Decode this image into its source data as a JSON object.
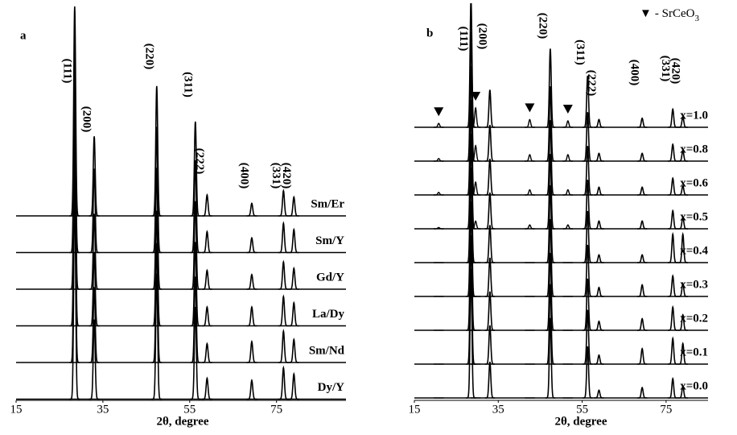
{
  "chart_data": [
    {
      "type": "line",
      "panel_label": "a",
      "xlabel": "2θ, degree",
      "xlim": [
        15,
        91
      ],
      "xticks": [
        15,
        35,
        55,
        75
      ],
      "color": "#000000",
      "peaks": {
        "labels": [
          "(111)",
          "(200)",
          "(220)",
          "(311)",
          "(222)",
          "(400)",
          "(331)",
          "(420)"
        ],
        "x": [
          28.5,
          33.0,
          47.4,
          56.3,
          59.0,
          69.3,
          76.6,
          79.0
        ]
      },
      "series": [
        {
          "name": "Sm/Er",
          "values": [
            100,
            38,
            62,
            45,
            10,
            6,
            12,
            9
          ]
        },
        {
          "name": "Sm/Y",
          "values": [
            100,
            40,
            60,
            44,
            10,
            7,
            14,
            11
          ]
        },
        {
          "name": "Gd/Y",
          "values": [
            100,
            36,
            58,
            42,
            9,
            7,
            13,
            10
          ]
        },
        {
          "name": "La/Dy",
          "values": [
            100,
            35,
            55,
            40,
            9,
            9,
            14,
            11
          ]
        },
        {
          "name": "Sm/Nd",
          "values": [
            100,
            36,
            57,
            41,
            9,
            10,
            15,
            11
          ]
        },
        {
          "name": "Dy/Y",
          "values": [
            100,
            38,
            60,
            44,
            10,
            9,
            15,
            12
          ]
        }
      ]
    },
    {
      "type": "line",
      "panel_label": "b",
      "xlabel": "2θ, degree",
      "xlim": [
        15,
        85
      ],
      "xticks": [
        15,
        35,
        55,
        75
      ],
      "color": "#000000",
      "legend": {
        "symbol": "▼",
        "label": "- SrCeO",
        "subscript": "3"
      },
      "peaks": {
        "labels": [
          "(111)",
          "(200)",
          "(220)",
          "(311)",
          "(222)",
          "(400)",
          "(331)",
          "(420)"
        ],
        "x": [
          28.5,
          33.0,
          47.4,
          56.3,
          59.0,
          69.3,
          76.6,
          79.0
        ]
      },
      "impurity_peaks": {
        "x": [
          20.8,
          29.6,
          42.5,
          51.6
        ]
      },
      "series": [
        {
          "name": "x=1.0",
          "values": [
            100,
            29,
            61,
            40,
            6,
            7,
            14,
            8
          ],
          "impurity_values": [
            3,
            15,
            6,
            5
          ]
        },
        {
          "name": "x=0.8",
          "values": [
            100,
            28,
            58,
            38,
            6,
            6,
            13,
            8
          ],
          "impurity_values": [
            2,
            12,
            5,
            5
          ]
        },
        {
          "name": "x=0.6",
          "values": [
            100,
            28,
            58,
            38,
            6,
            6,
            13,
            7
          ],
          "impurity_values": [
            2,
            10,
            4,
            4
          ]
        },
        {
          "name": "x=0.5",
          "values": [
            100,
            28,
            58,
            38,
            6,
            6,
            14,
            9
          ],
          "impurity_values": [
            1,
            6,
            3,
            3
          ]
        },
        {
          "name": "x=0.4",
          "values": [
            100,
            29,
            60,
            40,
            6,
            6,
            22,
            22
          ],
          "impurity_values": [
            0,
            0,
            0,
            0
          ]
        },
        {
          "name": "x=0.3",
          "values": [
            100,
            30,
            60,
            40,
            7,
            9,
            16,
            10
          ],
          "impurity_values": [
            0,
            0,
            0,
            0
          ]
        },
        {
          "name": "x=0.2",
          "values": [
            100,
            30,
            60,
            40,
            7,
            9,
            18,
            12
          ],
          "impurity_values": [
            0,
            0,
            0,
            0
          ]
        },
        {
          "name": "x=0.1",
          "values": [
            100,
            30,
            62,
            42,
            7,
            12,
            20,
            16
          ],
          "impurity_values": [
            0,
            0,
            0,
            0
          ]
        },
        {
          "name": "x=0.0",
          "values": [
            100,
            28,
            62,
            40,
            6,
            8,
            15,
            9
          ],
          "impurity_values": [
            0,
            0,
            0,
            0
          ]
        }
      ]
    }
  ]
}
